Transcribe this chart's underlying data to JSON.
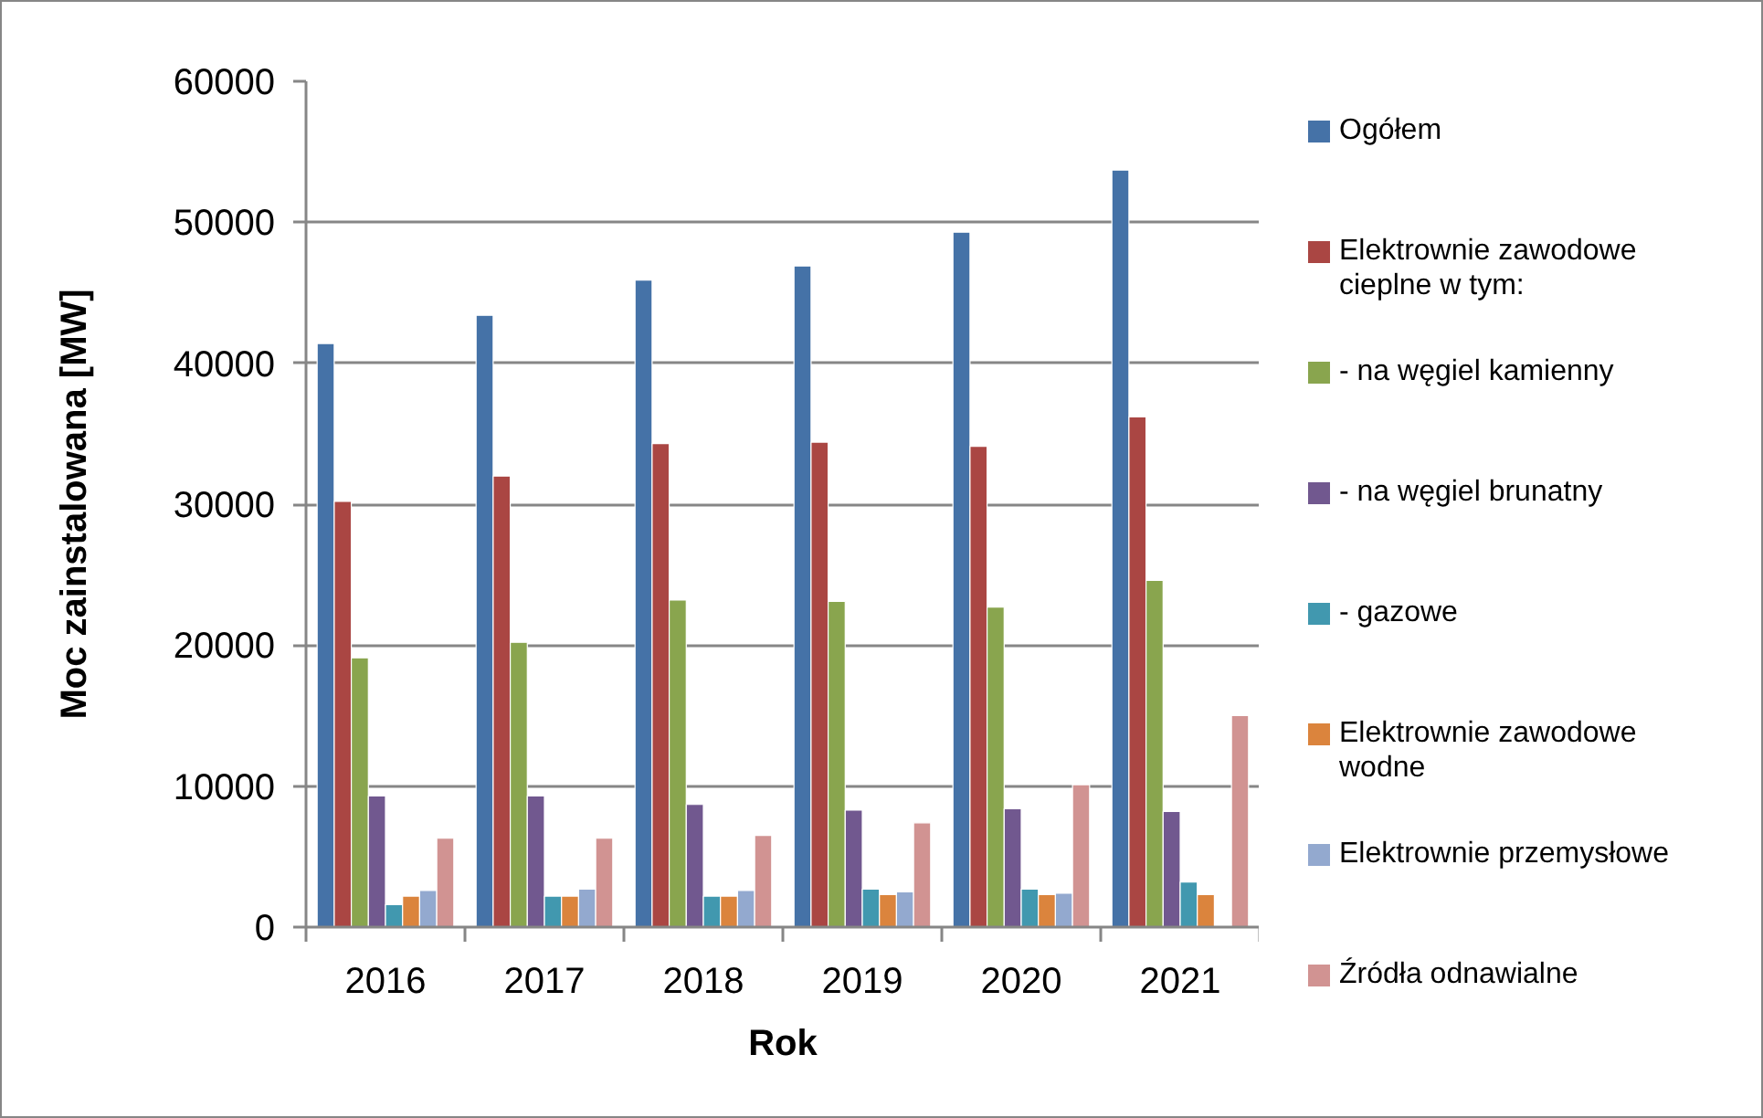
{
  "chart_data": {
    "type": "bar",
    "xlabel": "Rok",
    "ylabel": "Moc zainstalowana [MW]",
    "categories": [
      "2016",
      "2017",
      "2018",
      "2019",
      "2020",
      "2021"
    ],
    "ylim": [
      0,
      60000
    ],
    "yticks": [
      0,
      10000,
      20000,
      30000,
      40000,
      50000,
      60000
    ],
    "grid": "y",
    "legend": "right",
    "series": [
      {
        "name": "Ogółem",
        "color": "#4572a7",
        "values": [
          41400,
          43400,
          45900,
          46900,
          49300,
          53700
        ]
      },
      {
        "name": "Elektrownie zawodowe cieplne w tym:",
        "color": "#aa4643",
        "values": [
          30200,
          32000,
          34300,
          34400,
          34100,
          36200
        ]
      },
      {
        "name": "- na węgiel kamienny",
        "color": "#89a54e",
        "values": [
          19100,
          20200,
          23200,
          23100,
          22700,
          24600
        ]
      },
      {
        "name": "- na węgiel brunatny",
        "color": "#71588f",
        "values": [
          9300,
          9300,
          8700,
          8300,
          8400,
          8200
        ]
      },
      {
        "name": "- gazowe",
        "color": "#4198af",
        "values": [
          1600,
          2200,
          2200,
          2700,
          2700,
          3200
        ]
      },
      {
        "name": "Elektrownie zawodowe wodne",
        "color": "#db843d",
        "values": [
          2200,
          2200,
          2200,
          2300,
          2300,
          2300
        ]
      },
      {
        "name": "Elektrownie przemysłowe",
        "color": "#93a9cf",
        "values": [
          2600,
          2700,
          2600,
          2500,
          2400,
          null
        ]
      },
      {
        "name": "Źródła odnawialne",
        "color": "#d19392",
        "values": [
          6300,
          6300,
          6500,
          7400,
          10100,
          15000
        ]
      }
    ]
  }
}
